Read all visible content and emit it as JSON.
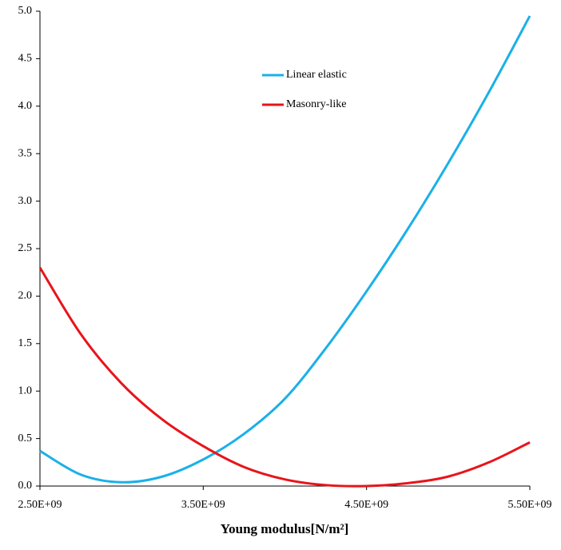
{
  "chart_data": {
    "type": "line",
    "x_label": "Young modulus[N/m²]",
    "x": [
      2500000000,
      2750000000,
      3000000000,
      3250000000,
      3500000000,
      3750000000,
      4000000000,
      4250000000,
      4500000000,
      4750000000,
      5000000000,
      5250000000,
      5500000000
    ],
    "series": [
      {
        "name": "Linear elastic",
        "color": "#1ab0e8",
        "values": [
          0.37,
          0.12,
          0.04,
          0.1,
          0.28,
          0.55,
          0.92,
          1.45,
          2.05,
          2.7,
          3.4,
          4.15,
          4.95
        ]
      },
      {
        "name": "Masonry-like",
        "color": "#e8141a",
        "values": [
          2.3,
          1.6,
          1.08,
          0.7,
          0.42,
          0.2,
          0.07,
          0.01,
          0.0,
          0.03,
          0.1,
          0.25,
          0.46
        ]
      }
    ],
    "xlim": [
      2500000000,
      5500000000
    ],
    "xticks": [
      {
        "value": 2500000000,
        "label": "2.50E+09"
      },
      {
        "value": 3500000000,
        "label": "3.50E+09"
      },
      {
        "value": 4500000000,
        "label": "4.50E+09"
      },
      {
        "value": 5500000000,
        "label": "5.50E+09"
      }
    ],
    "ylim": [
      0,
      5
    ],
    "yticks": [
      {
        "value": 0,
        "label": "0.0"
      },
      0.5,
      {
        "value": 1,
        "label": "1.0"
      },
      1.5,
      {
        "value": 2,
        "label": "2.0"
      },
      2.5,
      {
        "value": 3,
        "label": "3.0"
      },
      3.5,
      {
        "value": 4,
        "label": "4.0"
      },
      4.5,
      {
        "value": 5,
        "label": "5.0"
      }
    ],
    "grid": false,
    "legend": "upper-center"
  }
}
